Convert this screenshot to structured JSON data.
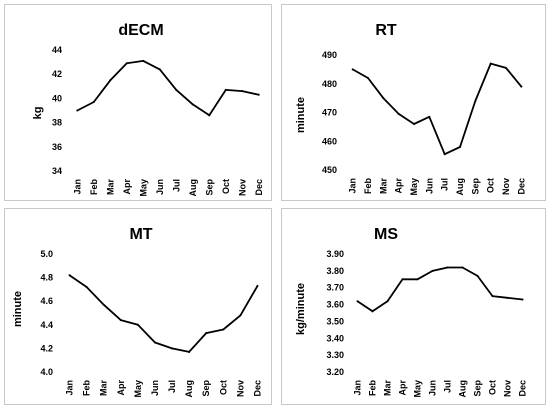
{
  "chart_data": [
    {
      "type": "line",
      "title": "dECM",
      "ylabel": "kg",
      "xlabel": "",
      "categories": [
        "Jan",
        "Feb",
        "Mar",
        "Apr",
        "May",
        "Jun",
        "Jul",
        "Aug",
        "Sep",
        "Oct",
        "Nov",
        "Dec"
      ],
      "values": [
        39.0,
        39.7,
        41.5,
        42.9,
        43.1,
        42.4,
        40.7,
        39.5,
        38.6,
        40.7,
        40.6,
        40.3
      ],
      "ylim": [
        34,
        44
      ],
      "yticks": [
        "34",
        "36",
        "38",
        "40",
        "42",
        "44"
      ],
      "grid": false,
      "line_color": "#000000"
    },
    {
      "type": "line",
      "title": "RT",
      "ylabel": "minute",
      "xlabel": "",
      "categories": [
        "Jan",
        "Feb",
        "Mar",
        "Apr",
        "May",
        "Jun",
        "Jul",
        "Aug",
        "Sep",
        "Oct",
        "Nov",
        "Dec"
      ],
      "values": [
        485,
        482,
        475,
        469.5,
        466,
        468.5,
        455.5,
        458,
        474,
        487,
        485.5,
        479
      ],
      "ylim": [
        450,
        490
      ],
      "yticks": [
        "450",
        "460",
        "470",
        "480",
        "490"
      ],
      "grid": false,
      "line_color": "#000000"
    },
    {
      "type": "line",
      "title": "MT",
      "ylabel": "minute",
      "xlabel": "",
      "categories": [
        "Jan",
        "Feb",
        "Mar",
        "Apr",
        "May",
        "Jun",
        "Jul",
        "Aug",
        "Sep",
        "Oct",
        "Nov",
        "Dec"
      ],
      "values": [
        4.82,
        4.72,
        4.57,
        4.44,
        4.4,
        4.25,
        4.2,
        4.17,
        4.33,
        4.36,
        4.48,
        4.73
      ],
      "ylim": [
        4.0,
        5.0
      ],
      "yticks": [
        "4.0",
        "4.2",
        "4.4",
        "4.6",
        "4.8",
        "5.0"
      ],
      "grid": false,
      "line_color": "#000000"
    },
    {
      "type": "line",
      "title": "MS",
      "ylabel": "kg/minute",
      "xlabel": "",
      "categories": [
        "Jan",
        "Feb",
        "Mar",
        "Apr",
        "May",
        "Jun",
        "Jul",
        "Aug",
        "Sep",
        "Oct",
        "Nov",
        "Dec"
      ],
      "values": [
        3.62,
        3.56,
        3.62,
        3.75,
        3.75,
        3.8,
        3.82,
        3.82,
        3.77,
        3.65,
        3.64,
        3.63
      ],
      "ylim": [
        3.2,
        3.9
      ],
      "yticks": [
        "3.20",
        "3.30",
        "3.40",
        "3.50",
        "3.60",
        "3.70",
        "3.80",
        "3.90"
      ],
      "grid": false,
      "line_color": "#000000"
    }
  ]
}
